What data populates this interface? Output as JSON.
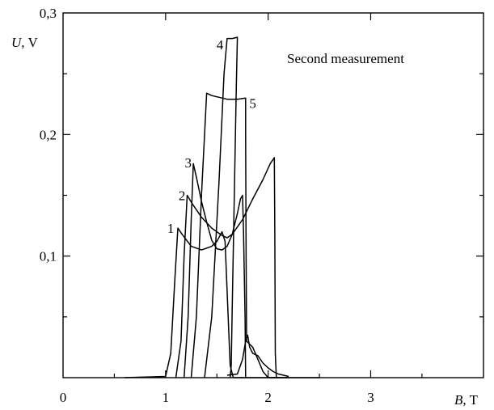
{
  "chart_data": {
    "type": "line",
    "title": "",
    "annotation": "Second measurement",
    "xlabel": {
      "symbol": "B",
      "unit": ", T"
    },
    "ylabel": {
      "symbol": "U",
      "unit": ", V"
    },
    "xlim": [
      0,
      4.1
    ],
    "ylim": [
      0,
      0.3
    ],
    "xticks": [
      {
        "value": 0,
        "label": "0"
      },
      {
        "value": 1,
        "label": "1"
      },
      {
        "value": 2,
        "label": "2"
      },
      {
        "value": 3,
        "label": "3"
      }
    ],
    "yticks": [
      {
        "value": 0.1,
        "label": "0,1"
      },
      {
        "value": 0.2,
        "label": "0,2"
      },
      {
        "value": 0.3,
        "label": "0,3"
      }
    ],
    "minor_xticks": [
      0.5,
      1.5,
      2.5,
      3.5
    ],
    "minor_yticks": [
      0.05,
      0.15,
      0.25
    ],
    "grid": false,
    "series": [
      {
        "label": "1",
        "points": [
          [
            0.6,
            0
          ],
          [
            1.0,
            0.001
          ],
          [
            1.05,
            0.02
          ],
          [
            1.09,
            0.08
          ],
          [
            1.12,
            0.123
          ],
          [
            1.16,
            0.118
          ],
          [
            1.25,
            0.108
          ],
          [
            1.35,
            0.105
          ],
          [
            1.45,
            0.108
          ],
          [
            1.5,
            0.112
          ],
          [
            1.55,
            0.12
          ],
          [
            1.58,
            0.112
          ],
          [
            1.61,
            0.05
          ],
          [
            1.63,
            0.01
          ],
          [
            1.66,
            0
          ],
          [
            2.5,
            0
          ]
        ]
      },
      {
        "label": "2",
        "points": [
          [
            1.1,
            0
          ],
          [
            1.15,
            0.03
          ],
          [
            1.18,
            0.1
          ],
          [
            1.21,
            0.15
          ],
          [
            1.26,
            0.143
          ],
          [
            1.35,
            0.132
          ],
          [
            1.45,
            0.123
          ],
          [
            1.55,
            0.117
          ],
          [
            1.6,
            0.115
          ],
          [
            1.65,
            0.118
          ],
          [
            1.75,
            0.13
          ],
          [
            1.85,
            0.147
          ],
          [
            1.95,
            0.163
          ],
          [
            2.02,
            0.176
          ],
          [
            2.06,
            0.181
          ],
          [
            2.065,
            0.12
          ],
          [
            2.07,
            0.02
          ],
          [
            2.08,
            0
          ]
        ]
      },
      {
        "label": "3",
        "points": [
          [
            1.18,
            0
          ],
          [
            1.22,
            0.05
          ],
          [
            1.25,
            0.13
          ],
          [
            1.27,
            0.176
          ],
          [
            1.3,
            0.165
          ],
          [
            1.35,
            0.145
          ],
          [
            1.4,
            0.128
          ],
          [
            1.45,
            0.113
          ],
          [
            1.5,
            0.106
          ],
          [
            1.55,
            0.105
          ],
          [
            1.6,
            0.108
          ],
          [
            1.65,
            0.118
          ],
          [
            1.7,
            0.135
          ],
          [
            1.73,
            0.147
          ],
          [
            1.75,
            0.15
          ],
          [
            1.76,
            0.12
          ],
          [
            1.775,
            0.05
          ],
          [
            1.78,
            0.0
          ]
        ]
      },
      {
        "label": "4",
        "points": [
          [
            1.25,
            0
          ],
          [
            1.3,
            0.05
          ],
          [
            1.35,
            0.15
          ],
          [
            1.4,
            0.234
          ],
          [
            1.45,
            0.232
          ],
          [
            1.55,
            0.23
          ],
          [
            1.6,
            0.229
          ],
          [
            1.7,
            0.229
          ],
          [
            1.78,
            0.23
          ],
          [
            1.78,
            0.2
          ],
          [
            1.785,
            0.1
          ],
          [
            1.79,
            0.03
          ],
          [
            1.85,
            0.025
          ],
          [
            1.9,
            0.015
          ],
          [
            1.95,
            0.005
          ],
          [
            2.0,
            0
          ],
          [
            2.2,
            0
          ]
        ]
      },
      {
        "label": "5",
        "points": [
          [
            1.38,
            0
          ],
          [
            1.45,
            0.05
          ],
          [
            1.52,
            0.16
          ],
          [
            1.57,
            0.25
          ],
          [
            1.6,
            0.279
          ],
          [
            1.65,
            0.279
          ],
          [
            1.7,
            0.28
          ],
          [
            1.69,
            0.24
          ],
          [
            1.67,
            0.15
          ],
          [
            1.65,
            0.06
          ],
          [
            1.64,
            0.01
          ],
          [
            1.63,
            0
          ]
        ]
      },
      {
        "label": "",
        "points": [
          [
            1.6,
            0.002
          ],
          [
            1.7,
            0.003
          ],
          [
            1.75,
            0.015
          ],
          [
            1.78,
            0.03
          ],
          [
            1.8,
            0.035
          ],
          [
            1.82,
            0.025
          ],
          [
            1.85,
            0.02
          ],
          [
            1.9,
            0.018
          ],
          [
            1.95,
            0.012
          ],
          [
            2.0,
            0.008
          ],
          [
            2.05,
            0.005
          ],
          [
            2.1,
            0.003
          ],
          [
            2.2,
            0.001
          ]
        ]
      }
    ],
    "curve_labels": [
      {
        "text": "1",
        "x": 1.05,
        "y": 0.119
      },
      {
        "text": "2",
        "x": 1.16,
        "y": 0.146
      },
      {
        "text": "3",
        "x": 1.22,
        "y": 0.173
      },
      {
        "text": "4",
        "x": 1.53,
        "y": 0.27
      },
      {
        "text": "5",
        "x": 1.85,
        "y": 0.222
      }
    ]
  }
}
